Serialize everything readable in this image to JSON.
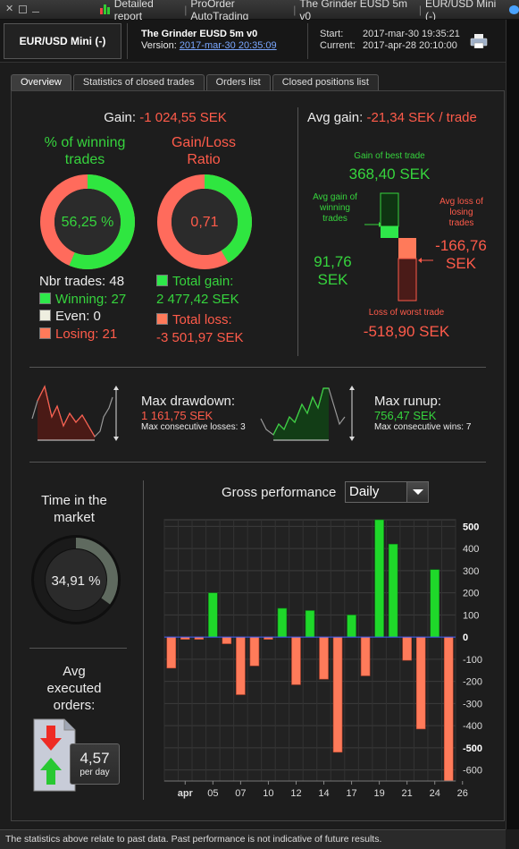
{
  "titlebar": {
    "tabs": [
      "Detailed report",
      "ProOrder AutoTrading",
      "The Grinder EUSD 5m v0",
      "EUR/USD Mini (-)"
    ]
  },
  "header": {
    "instrument": "EUR/USD Mini (-)",
    "strategy_name": "The Grinder EUSD 5m v0",
    "version_label": "Version:",
    "version_value": "2017-mar-30 20:35:09",
    "start_label": "Start:",
    "start_value": "2017-mar-30 19:35:21",
    "current_label": "Current:",
    "current_value": "2017-apr-28 20:10:00"
  },
  "tabs": [
    {
      "label": "Overview",
      "active": true
    },
    {
      "label": "Statistics of closed trades",
      "active": false
    },
    {
      "label": "Orders list",
      "active": false
    },
    {
      "label": "Closed positions list",
      "active": false
    }
  ],
  "gain": {
    "label": "Gain:",
    "value": "-1 024,55 SEK",
    "winning_title_1": "% of winning",
    "winning_title_2": "trades",
    "winning_pct_text": "56,25 %",
    "winning_pct": 56.25,
    "ratio_title_1": "Gain/Loss",
    "ratio_title_2": "Ratio",
    "ratio_text": "0,71",
    "ratio_value": 0.71,
    "nbr_trades": "Nbr trades: 48",
    "winning": "Winning: 27",
    "even": "Even: 0",
    "losing": "Losing: 21",
    "total_gain_label": "Total gain:",
    "total_gain_value": "2 477,42 SEK",
    "total_loss_label": "Total loss:",
    "total_loss_value": "-3 501,97 SEK"
  },
  "avg_gain": {
    "label": "Avg gain:",
    "value": "-21,34 SEK / trade",
    "best_label": "Gain of best trade",
    "best_value": "368,40 SEK",
    "avg_win_label_1": "Avg gain of",
    "avg_win_label_2": "winning",
    "avg_win_label_3": "trades",
    "avg_win_value_1": "91,76",
    "avg_win_value_2": "SEK",
    "avg_loss_label_1": "Avg loss of",
    "avg_loss_label_2": "losing",
    "avg_loss_label_3": "trades",
    "avg_loss_value_1": "-166,76",
    "avg_loss_value_2": "SEK",
    "worst_label": "Loss of worst trade",
    "worst_value": "-518,90 SEK"
  },
  "drawdown": {
    "label": "Max drawdown:",
    "value": "1 161,75 SEK",
    "consec": "Max consecutive losses: 3"
  },
  "runup": {
    "label": "Max runup:",
    "value": "756,47 SEK",
    "consec": "Max consecutive wins: 7"
  },
  "market": {
    "title_1": "Time in the",
    "title_2": "market",
    "pct_text": "34,91 %",
    "pct": 34.91
  },
  "orders": {
    "title_1": "Avg",
    "title_2": "executed",
    "title_3": "orders:",
    "value": "4,57",
    "unit": "per day"
  },
  "performance": {
    "title": "Gross performance",
    "period": "Daily"
  },
  "chart_data": {
    "type": "bar",
    "title": "Gross performance",
    "ylim": [
      -650,
      530
    ],
    "yticks": [
      500,
      400,
      300,
      200,
      100,
      0,
      -100,
      -200,
      -300,
      -400,
      -500,
      -600
    ],
    "ytick_labels": [
      "500",
      "400",
      "300",
      "200",
      "100",
      "0",
      "-100",
      "-200",
      "-300",
      "-400",
      "-500",
      "-600"
    ],
    "xtick_labels": [
      {
        "label": "apr",
        "index": 1
      },
      {
        "label": "05",
        "index": 3
      },
      {
        "label": "07",
        "index": 5
      },
      {
        "label": "10",
        "index": 7
      },
      {
        "label": "12",
        "index": 9
      },
      {
        "label": "14",
        "index": 11
      },
      {
        "label": "17",
        "index": 13
      },
      {
        "label": "19",
        "index": 15
      },
      {
        "label": "21",
        "index": 17
      },
      {
        "label": "24",
        "index": 19
      },
      {
        "label": "26",
        "index": 21
      }
    ],
    "bars": [
      {
        "index": 0,
        "value": -140
      },
      {
        "index": 1,
        "value": -10
      },
      {
        "index": 2,
        "value": -10
      },
      {
        "index": 3,
        "value": 200
      },
      {
        "index": 4,
        "value": -30
      },
      {
        "index": 5,
        "value": -260
      },
      {
        "index": 6,
        "value": -130
      },
      {
        "index": 7,
        "value": -10
      },
      {
        "index": 8,
        "value": 130
      },
      {
        "index": 9,
        "value": -215
      },
      {
        "index": 10,
        "value": 120
      },
      {
        "index": 11,
        "value": -190
      },
      {
        "index": 12,
        "value": -520
      },
      {
        "index": 13,
        "value": 100
      },
      {
        "index": 14,
        "value": -175
      },
      {
        "index": 15,
        "value": 530
      },
      {
        "index": 16,
        "value": 420
      },
      {
        "index": 17,
        "value": -105
      },
      {
        "index": 18,
        "value": -415
      },
      {
        "index": 19,
        "value": 305
      },
      {
        "index": 20,
        "value": -650
      }
    ],
    "positive_color": "#1fd82a",
    "negative_color": "#ff7b5a",
    "grid": true
  },
  "footer": {
    "text": "The statistics above relate to past data. Past performance is not indicative of future results."
  },
  "colors": {
    "green": "#36d43d",
    "red": "#ff5b4a",
    "link": "#7aa7ff"
  }
}
